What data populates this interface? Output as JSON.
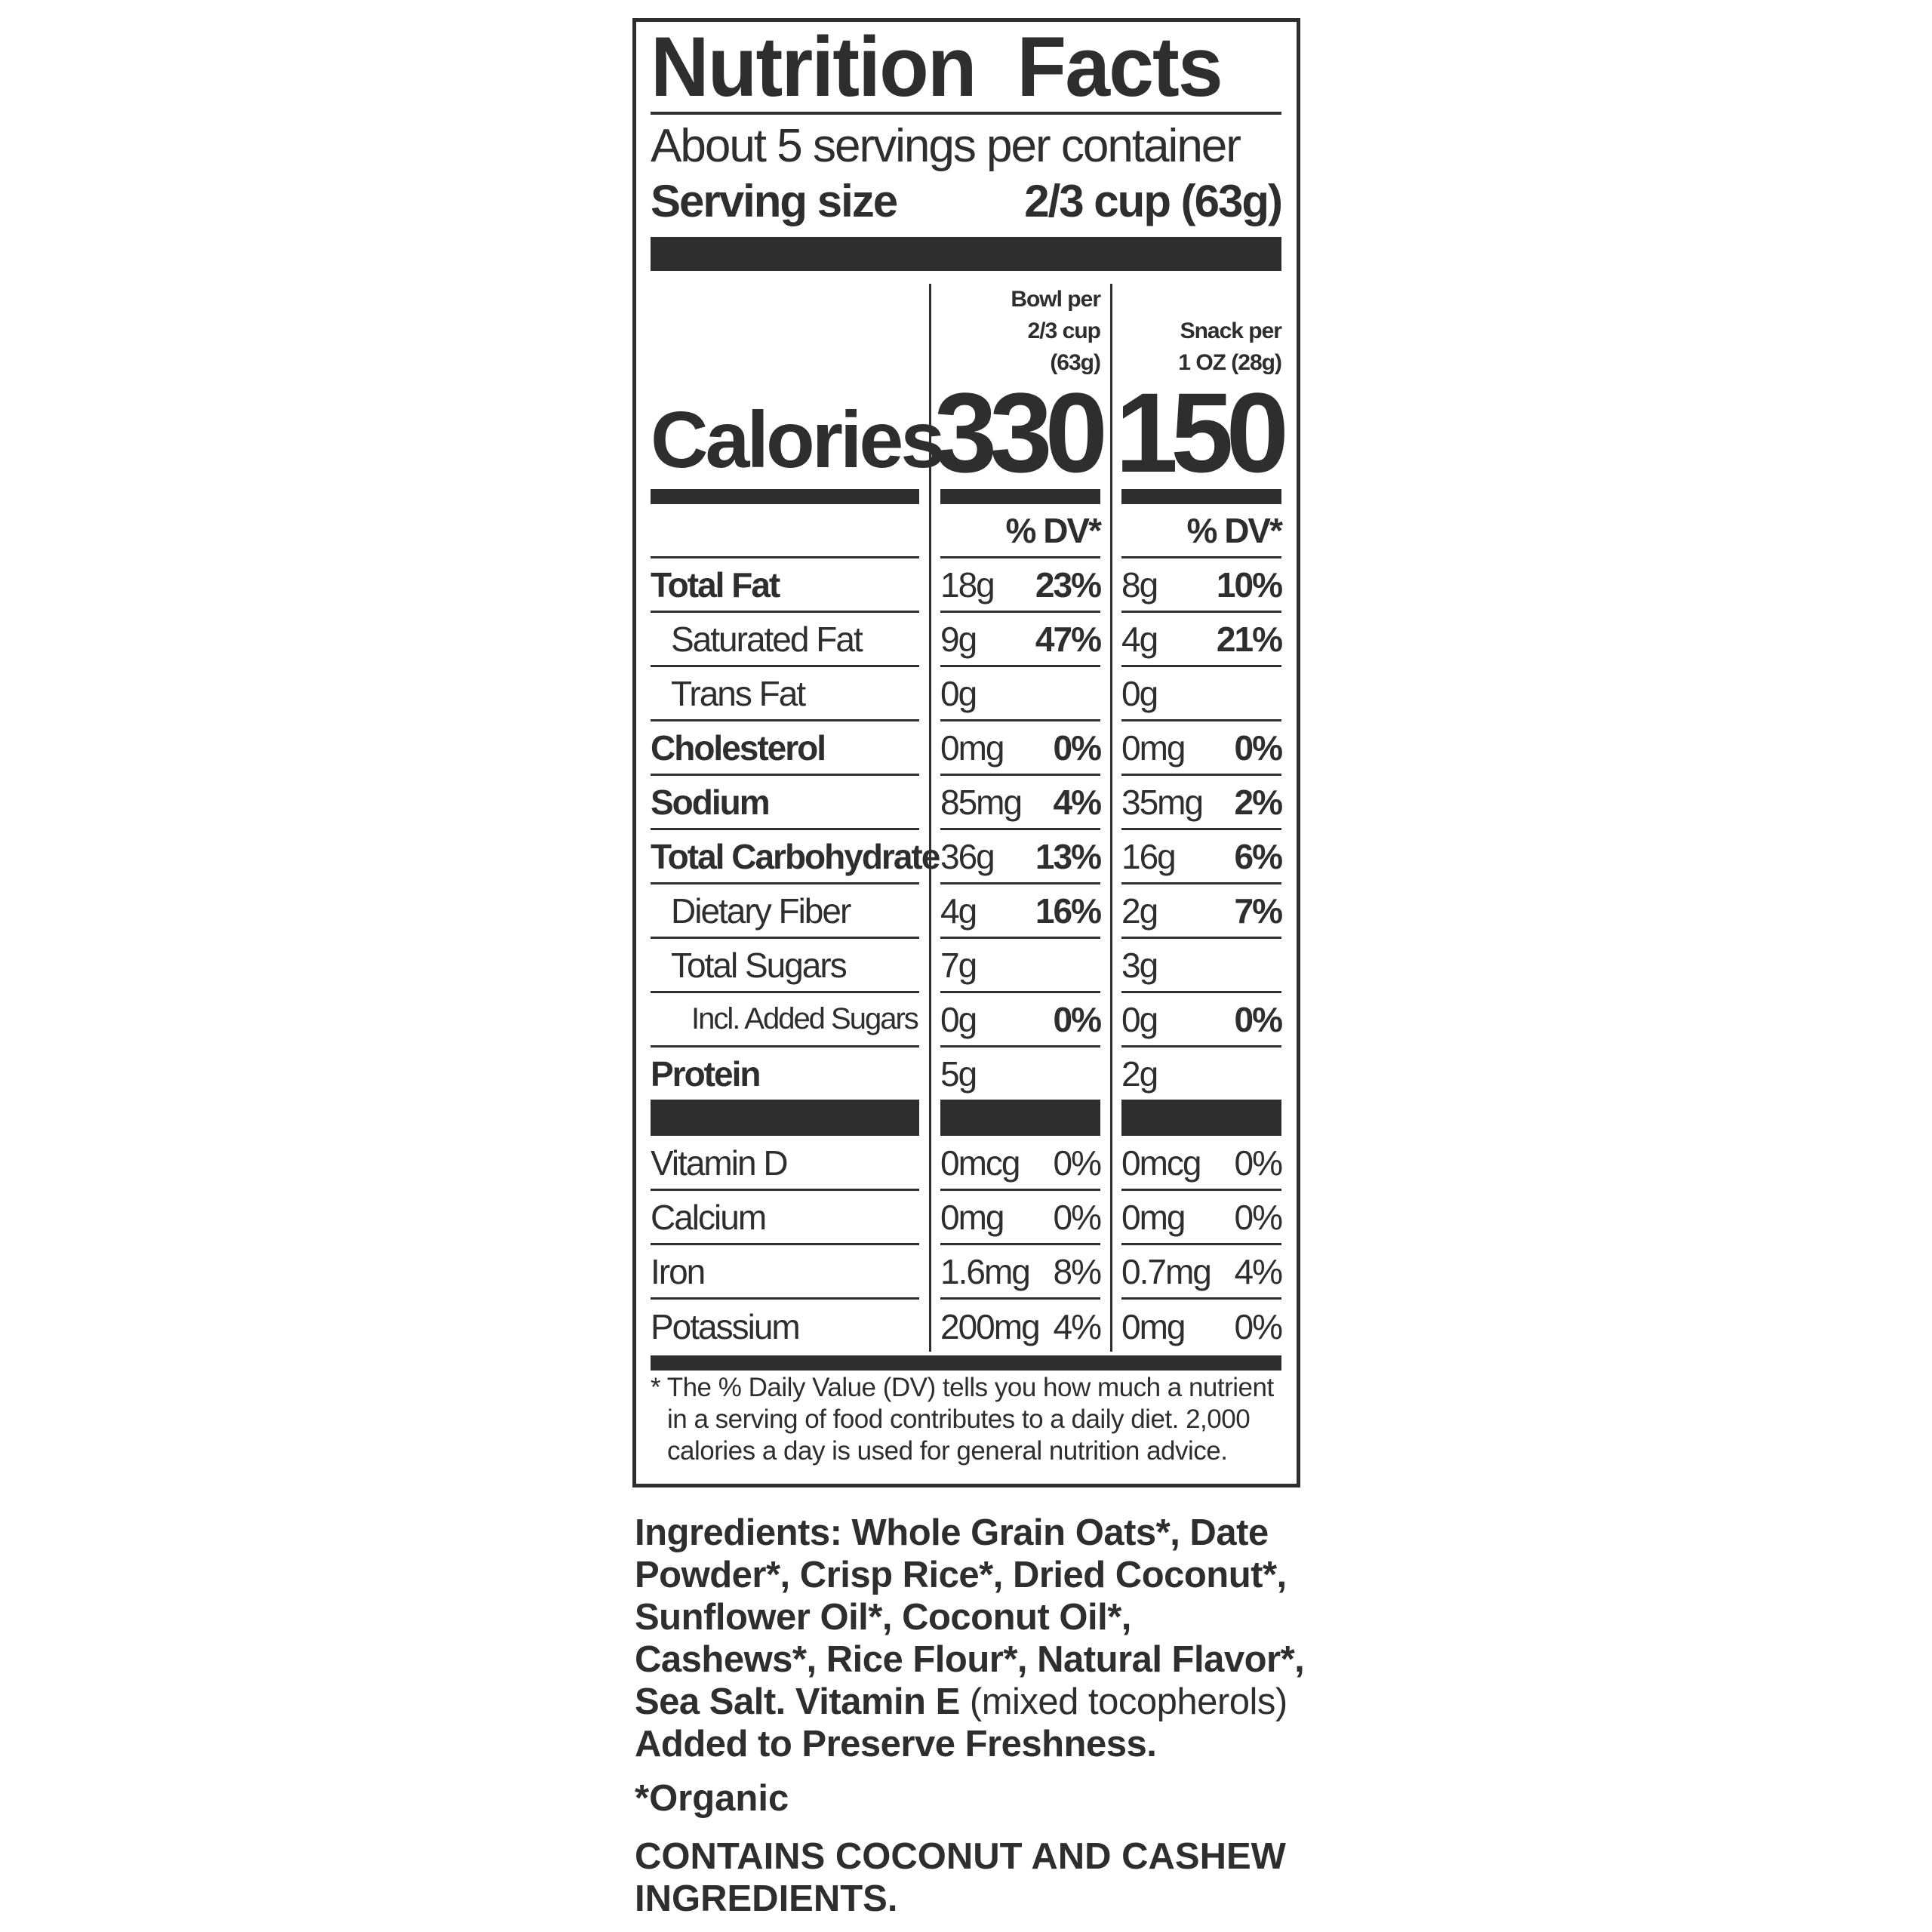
{
  "label": {
    "title": "Nutrition Facts",
    "servings_per_container": "About 5 servings per container",
    "serving_size_label": "Serving size",
    "serving_size_value": "2/3 cup (63g)",
    "calories_label": "Calories",
    "columns": [
      {
        "header": [
          "Bowl per",
          "2/3 cup",
          "(63g)"
        ],
        "calories": "330",
        "dv_header": "% DV*"
      },
      {
        "header": [
          "Snack per",
          "1 OZ (28g)"
        ],
        "calories": "150",
        "dv_header": "% DV*"
      }
    ],
    "nutrients": [
      {
        "name": "Total Fat",
        "bowl": "18g",
        "bowl_dv": "23%",
        "snack": "8g",
        "snack_dv": "10%"
      },
      {
        "name": "Saturated Fat",
        "bowl": "9g",
        "bowl_dv": "47%",
        "snack": "4g",
        "snack_dv": "21%"
      },
      {
        "name": "Trans Fat",
        "bowl": "0g",
        "bowl_dv": "",
        "snack": "0g",
        "snack_dv": ""
      },
      {
        "name": "Cholesterol",
        "bowl": "0mg",
        "bowl_dv": "0%",
        "snack": "0mg",
        "snack_dv": "0%"
      },
      {
        "name": "Sodium",
        "bowl": "85mg",
        "bowl_dv": "4%",
        "snack": "35mg",
        "snack_dv": "2%"
      },
      {
        "name": "Total Carbohydrate",
        "bowl": "36g",
        "bowl_dv": "13%",
        "snack": "16g",
        "snack_dv": "6%"
      },
      {
        "name": "Dietary Fiber",
        "bowl": "4g",
        "bowl_dv": "16%",
        "snack": "2g",
        "snack_dv": "7%"
      },
      {
        "name": "Total Sugars",
        "bowl": "7g",
        "bowl_dv": "",
        "snack": "3g",
        "snack_dv": ""
      },
      {
        "name": "Incl. Added Sugars",
        "bowl": "0g",
        "bowl_dv": "0%",
        "snack": "0g",
        "snack_dv": "0%"
      },
      {
        "name": "Protein",
        "bowl": "5g",
        "bowl_dv": "",
        "snack": "2g",
        "snack_dv": ""
      }
    ],
    "vitamins": [
      {
        "name": "Vitamin D",
        "bowl": "0mcg",
        "bowl_dv": "0%",
        "snack": "0mcg",
        "snack_dv": "0%"
      },
      {
        "name": "Calcium",
        "bowl": "0mg",
        "bowl_dv": "0%",
        "snack": "0mg",
        "snack_dv": "0%"
      },
      {
        "name": "Iron",
        "bowl": "1.6mg",
        "bowl_dv": "8%",
        "snack": "0.7mg",
        "snack_dv": "4%"
      },
      {
        "name": "Potassium",
        "bowl": "200mg",
        "bowl_dv": "4%",
        "snack": "0mg",
        "snack_dv": "0%"
      }
    ],
    "footnote": "* The % Daily Value (DV) tells you how much a nutrient in a serving of food contributes to a daily diet. 2,000 calories a day is used for general nutrition advice."
  },
  "ingredients": {
    "text_bold": "Ingredients: Whole Grain Oats*, Date Powder*, Crisp Rice*, Dried Coconut*, Sunflower Oil*, Coconut Oil*, Cashews*, Rice Flour*, Natural Flavor*, Sea Salt. Vitamin E",
    "text_normal": " (mixed tocopherols) ",
    "text_bold_end": "Added to Preserve Freshness.",
    "organic_note": "*Organic",
    "allergen": "CONTAINS COCONUT AND CASHEW INGREDIENTS."
  },
  "colors": {
    "ink": "#2e2e2e",
    "background": "#ffffff"
  }
}
